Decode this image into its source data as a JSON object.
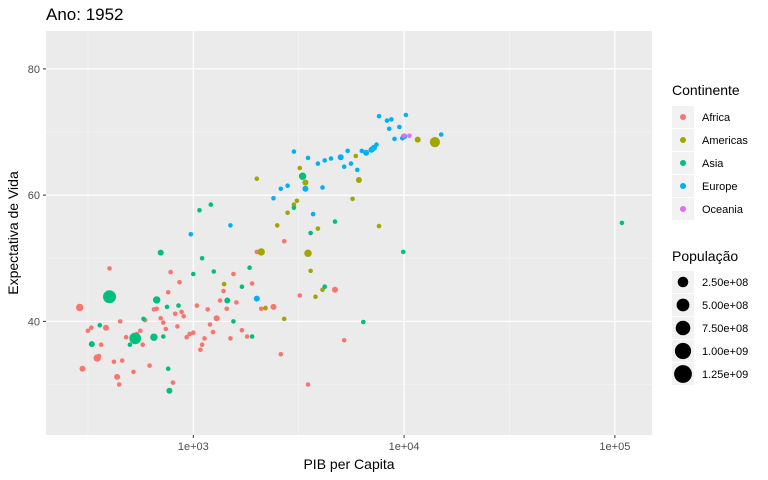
{
  "chart_data": {
    "type": "scatter",
    "title": "Ano: 1952",
    "xlabel": "PIB per Capita",
    "ylabel": "Expectativa de Vida",
    "x_scale": "log10",
    "xlim": [
      200,
      150000
    ],
    "ylim": [
      22,
      86
    ],
    "x_ticks": [
      1000,
      10000,
      100000
    ],
    "x_tick_labels": [
      "1e+03",
      "1e+04",
      "1e+05"
    ],
    "y_ticks": [
      40,
      60,
      80
    ],
    "y_tick_labels": [
      "40",
      "60",
      "80"
    ],
    "grid": true,
    "legend_position": "right",
    "color_legend": {
      "title": "Continente",
      "entries": [
        {
          "name": "Africa",
          "color": "#F8766D"
        },
        {
          "name": "Americas",
          "color": "#A3A500"
        },
        {
          "name": "Asia",
          "color": "#00BF7D"
        },
        {
          "name": "Europe",
          "color": "#00B0F6"
        },
        {
          "name": "Oceania",
          "color": "#E76BF3"
        }
      ]
    },
    "size_legend": {
      "title": "População",
      "entries": [
        {
          "label": "2.50e+08",
          "value": 250000000
        },
        {
          "label": "5.00e+08",
          "value": 500000000
        },
        {
          "label": "7.50e+08",
          "value": 750000000
        },
        {
          "label": "1.00e+09",
          "value": 1000000000
        },
        {
          "label": "1.25e+09",
          "value": 1250000000
        }
      ]
    },
    "series": [
      {
        "name": "Africa",
        "points": [
          [
            289,
            42.2,
            5
          ],
          [
            298,
            32.5,
            4
          ],
          [
            316,
            38.5,
            3
          ],
          [
            328,
            39.0,
            3
          ],
          [
            350,
            34.2,
            5
          ],
          [
            357,
            34.5,
            3
          ],
          [
            365,
            36.3,
            3
          ],
          [
            385,
            39.0,
            4
          ],
          [
            400,
            48.4,
            3
          ],
          [
            420,
            33.6,
            3
          ],
          [
            435,
            31.2,
            4
          ],
          [
            445,
            30.0,
            3
          ],
          [
            450,
            40.0,
            3
          ],
          [
            460,
            33.8,
            3
          ],
          [
            480,
            37.5,
            3
          ],
          [
            520,
            32.0,
            3
          ],
          [
            540,
            38.0,
            3
          ],
          [
            560,
            38.5,
            3
          ],
          [
            575,
            36.3,
            3
          ],
          [
            590,
            40.2,
            3
          ],
          [
            620,
            33.0,
            3
          ],
          [
            650,
            41.9,
            3
          ],
          [
            670,
            42.0,
            3
          ],
          [
            700,
            40.5,
            3
          ],
          [
            720,
            39.8,
            3
          ],
          [
            740,
            38.8,
            3
          ],
          [
            760,
            44.6,
            3
          ],
          [
            780,
            47.8,
            3
          ],
          [
            800,
            30.3,
            3
          ],
          [
            820,
            41.2,
            3
          ],
          [
            840,
            39.2,
            3
          ],
          [
            860,
            46.2,
            3
          ],
          [
            880,
            41.5,
            3
          ],
          [
            900,
            40.8,
            3
          ],
          [
            930,
            37.5,
            3
          ],
          [
            960,
            38.0,
            3
          ],
          [
            1000,
            38.2,
            3
          ],
          [
            1040,
            42.5,
            3
          ],
          [
            1080,
            35.5,
            3
          ],
          [
            1100,
            36.3,
            3
          ],
          [
            1130,
            37.3,
            3
          ],
          [
            1170,
            41.9,
            3
          ],
          [
            1200,
            39.5,
            3
          ],
          [
            1240,
            38.3,
            3
          ],
          [
            1290,
            40.5,
            4
          ],
          [
            1340,
            43.3,
            3
          ],
          [
            1390,
            44.8,
            3
          ],
          [
            1440,
            42.0,
            3
          ],
          [
            1500,
            37.3,
            3
          ],
          [
            1550,
            47.5,
            3
          ],
          [
            1600,
            43.0,
            3
          ],
          [
            1700,
            38.6,
            3
          ],
          [
            1800,
            37.6,
            3
          ],
          [
            1900,
            46.0,
            3
          ],
          [
            2000,
            51.0,
            3
          ],
          [
            2100,
            42.0,
            3
          ],
          [
            2200,
            42.1,
            3
          ],
          [
            2400,
            42.3,
            4
          ],
          [
            2600,
            34.8,
            3
          ],
          [
            2700,
            52.7,
            3
          ],
          [
            3200,
            44.1,
            3
          ],
          [
            3500,
            30.0,
            3
          ],
          [
            4700,
            45.0,
            4
          ],
          [
            5200,
            37.0,
            3
          ]
        ]
      },
      {
        "name": "Americas",
        "points": [
          [
            1400,
            45.9,
            3
          ],
          [
            2000,
            62.6,
            3
          ],
          [
            2100,
            51.0,
            5
          ],
          [
            2200,
            42.1,
            3
          ],
          [
            2500,
            55.2,
            3
          ],
          [
            2700,
            40.4,
            3
          ],
          [
            2800,
            57.2,
            3
          ],
          [
            3000,
            58.5,
            3
          ],
          [
            3100,
            59.1,
            3
          ],
          [
            3200,
            64.3,
            3
          ],
          [
            3400,
            62.0,
            4
          ],
          [
            3500,
            50.8,
            5
          ],
          [
            3600,
            48.0,
            3
          ],
          [
            3800,
            43.9,
            3
          ],
          [
            3900,
            54.7,
            3
          ],
          [
            4100,
            45.0,
            3
          ],
          [
            5700,
            59.4,
            3
          ],
          [
            5900,
            66.2,
            3
          ],
          [
            6100,
            62.4,
            4
          ],
          [
            7600,
            55.1,
            3
          ],
          [
            11600,
            68.8,
            4
          ],
          [
            14000,
            68.4,
            7
          ]
        ]
      },
      {
        "name": "Asia",
        "points": [
          [
            330,
            36.4,
            4
          ],
          [
            360,
            39.4,
            3
          ],
          [
            400,
            43.9,
            9
          ],
          [
            500,
            36.3,
            3
          ],
          [
            530,
            37.3,
            8
          ],
          [
            580,
            40.4,
            3
          ],
          [
            650,
            37.5,
            5
          ],
          [
            670,
            43.4,
            5
          ],
          [
            700,
            50.9,
            4
          ],
          [
            720,
            37.6,
            3
          ],
          [
            750,
            42.3,
            3
          ],
          [
            760,
            32.5,
            3
          ],
          [
            770,
            29.0,
            4
          ],
          [
            850,
            42.5,
            3
          ],
          [
            1000,
            47.5,
            3
          ],
          [
            1070,
            57.6,
            3
          ],
          [
            1100,
            50.0,
            3
          ],
          [
            1210,
            58.5,
            3
          ],
          [
            1250,
            47.9,
            3
          ],
          [
            1450,
            43.3,
            4
          ],
          [
            1550,
            40.0,
            3
          ],
          [
            1700,
            45.5,
            3
          ],
          [
            1850,
            48.5,
            3
          ],
          [
            1900,
            37.6,
            3
          ],
          [
            3000,
            58.0,
            3
          ],
          [
            3300,
            63.0,
            5
          ],
          [
            3600,
            54.0,
            3
          ],
          [
            4200,
            45.5,
            3
          ],
          [
            4700,
            55.8,
            3
          ],
          [
            6400,
            39.9,
            3
          ],
          [
            9900,
            51.0,
            3
          ],
          [
            108000,
            55.6,
            3
          ]
        ]
      },
      {
        "name": "Europe",
        "points": [
          [
            973,
            53.8,
            3
          ],
          [
            1500,
            55.2,
            3
          ],
          [
            2000,
            43.6,
            4
          ],
          [
            2400,
            59.5,
            3
          ],
          [
            2600,
            61.0,
            3
          ],
          [
            2800,
            61.5,
            3
          ],
          [
            3000,
            66.9,
            3
          ],
          [
            3400,
            61.0,
            4
          ],
          [
            3500,
            65.9,
            3
          ],
          [
            3700,
            57.0,
            3
          ],
          [
            3900,
            65.0,
            3
          ],
          [
            4100,
            61.2,
            3
          ],
          [
            4200,
            65.5,
            3
          ],
          [
            4500,
            65.8,
            3
          ],
          [
            5000,
            66.0,
            4
          ],
          [
            5200,
            64.5,
            3
          ],
          [
            5400,
            67.0,
            3
          ],
          [
            5600,
            65.0,
            3
          ],
          [
            6000,
            64.0,
            3
          ],
          [
            6300,
            67.0,
            3
          ],
          [
            6600,
            66.7,
            4
          ],
          [
            7000,
            67.2,
            4
          ],
          [
            7200,
            67.5,
            4
          ],
          [
            7400,
            68.0,
            3
          ],
          [
            7600,
            72.5,
            3
          ],
          [
            8300,
            71.8,
            3
          ],
          [
            8500,
            70.5,
            3
          ],
          [
            8700,
            72.0,
            3
          ],
          [
            9000,
            68.9,
            3
          ],
          [
            9500,
            70.8,
            3
          ],
          [
            9800,
            69.0,
            3
          ],
          [
            10000,
            69.3,
            4
          ],
          [
            10200,
            72.7,
            3
          ],
          [
            15000,
            69.6,
            3
          ]
        ]
      },
      {
        "name": "Oceania",
        "points": [
          [
            10000,
            69.4,
            3
          ],
          [
            10600,
            69.4,
            3
          ]
        ]
      }
    ]
  }
}
